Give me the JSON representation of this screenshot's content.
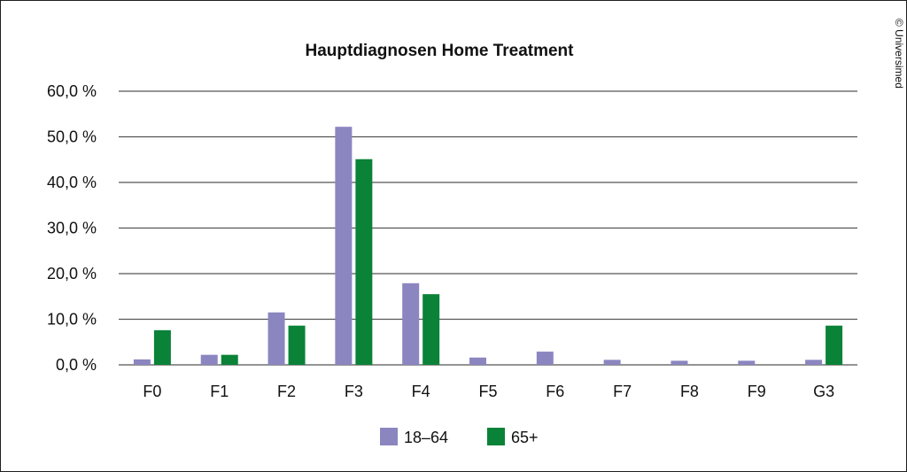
{
  "copyright": "© Universimed",
  "chart_data": {
    "type": "bar",
    "title": "Hauptdiagnosen Home Treatment",
    "categories": [
      "F0",
      "F1",
      "F2",
      "F3",
      "F4",
      "F5",
      "F6",
      "F7",
      "F8",
      "F9",
      "G3"
    ],
    "series": [
      {
        "name": "18–64",
        "color": "#8b86c0",
        "values": [
          1.2,
          2.2,
          11.5,
          52.2,
          17.9,
          1.6,
          2.9,
          1.1,
          0.9,
          0.9,
          1.1
        ]
      },
      {
        "name": "65+",
        "color": "#0a8238",
        "values": [
          7.6,
          2.2,
          8.6,
          45.1,
          15.5,
          0.0,
          0.0,
          0.0,
          0.0,
          0.0,
          8.6
        ]
      }
    ],
    "ylim": [
      0,
      60
    ],
    "yticks": [
      0,
      10,
      20,
      30,
      40,
      50,
      60
    ],
    "ytick_labels": [
      "0,0 %",
      "10,0 %",
      "20,0 %",
      "30,0 %",
      "40,0 %",
      "50,0 %",
      "60,0 %"
    ],
    "xlabel": "",
    "ylabel": "",
    "grid": true,
    "legend_position": "bottom"
  }
}
